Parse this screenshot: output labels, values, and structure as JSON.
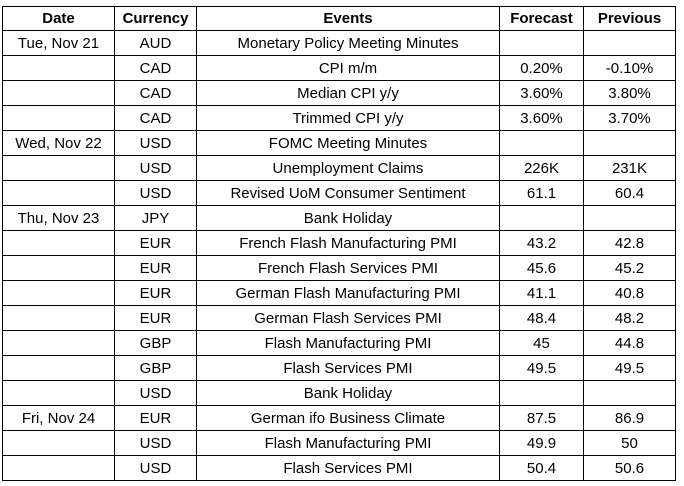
{
  "headers": [
    "Date",
    "Currency",
    "Events",
    "Forecast",
    "Previous"
  ],
  "rows": [
    {
      "date": "Tue, Nov 21",
      "currency": "AUD",
      "event": "Monetary Policy Meeting Minutes",
      "forecast": "",
      "previous": ""
    },
    {
      "date": "",
      "currency": "CAD",
      "event": "CPI m/m",
      "forecast": "0.20%",
      "previous": "-0.10%"
    },
    {
      "date": "",
      "currency": "CAD",
      "event": "Median CPI y/y",
      "forecast": "3.60%",
      "previous": "3.80%"
    },
    {
      "date": "",
      "currency": "CAD",
      "event": "Trimmed CPI y/y",
      "forecast": "3.60%",
      "previous": "3.70%"
    },
    {
      "date": "Wed, Nov 22",
      "currency": "USD",
      "event": "FOMC Meeting Minutes",
      "forecast": "",
      "previous": ""
    },
    {
      "date": "",
      "currency": "USD",
      "event": "Unemployment Claims",
      "forecast": "226K",
      "previous": "231K"
    },
    {
      "date": "",
      "currency": "USD",
      "event": "Revised UoM Consumer Sentiment",
      "forecast": "61.1",
      "previous": "60.4"
    },
    {
      "date": "Thu, Nov 23",
      "currency": "JPY",
      "event": "Bank Holiday",
      "forecast": "",
      "previous": ""
    },
    {
      "date": "",
      "currency": "EUR",
      "event": "French Flash Manufacturing PMI",
      "forecast": "43.2",
      "previous": "42.8"
    },
    {
      "date": "",
      "currency": "EUR",
      "event": "French Flash Services PMI",
      "forecast": "45.6",
      "previous": "45.2"
    },
    {
      "date": "",
      "currency": "EUR",
      "event": "German Flash Manufacturing PMI",
      "forecast": "41.1",
      "previous": "40.8"
    },
    {
      "date": "",
      "currency": "EUR",
      "event": "German Flash Services PMI",
      "forecast": "48.4",
      "previous": "48.2"
    },
    {
      "date": "",
      "currency": "GBP",
      "event": "Flash Manufacturing PMI",
      "forecast": "45",
      "previous": "44.8"
    },
    {
      "date": "",
      "currency": "GBP",
      "event": "Flash Services PMI",
      "forecast": "49.5",
      "previous": "49.5"
    },
    {
      "date": "",
      "currency": "USD",
      "event": "Bank Holiday",
      "forecast": "",
      "previous": ""
    },
    {
      "date": "Fri, Nov 24",
      "currency": "EUR",
      "event": "German ifo Business Climate",
      "forecast": "87.5",
      "previous": "86.9"
    },
    {
      "date": "",
      "currency": "USD",
      "event": "Flash Manufacturing PMI",
      "forecast": "49.9",
      "previous": "50"
    },
    {
      "date": "",
      "currency": "USD",
      "event": "Flash Services PMI",
      "forecast": "50.4",
      "previous": "50.6"
    }
  ]
}
